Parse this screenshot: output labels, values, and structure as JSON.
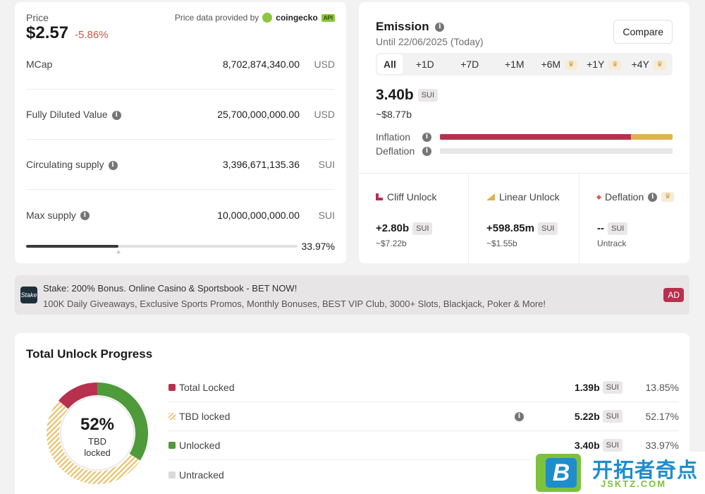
{
  "price": {
    "label": "Price",
    "value": "$2.57",
    "change": "-5.86%",
    "provider_prefix": "Price data provided by",
    "provider_name": "coingecko",
    "provider_tag": "API"
  },
  "stats": [
    {
      "label": "MCap",
      "value": "8,702,874,340.00",
      "unit": "USD",
      "info": false
    },
    {
      "label": "Fully Diluted Value",
      "value": "25,700,000,000.00",
      "unit": "USD",
      "info": true
    },
    {
      "label": "Circulating supply",
      "value": "3,396,671,135.36",
      "unit": "SUI",
      "info": true
    },
    {
      "label": "Max supply",
      "value": "10,000,000,000.00",
      "unit": "SUI",
      "info": true
    }
  ],
  "supply_progress": {
    "percent_label": "33.97%",
    "fraction": 0.3397
  },
  "emission": {
    "title": "Emission",
    "subtitle": "Until 22/06/2025 (Today)",
    "compare_label": "Compare",
    "tabs": [
      {
        "label": "All",
        "premium": false
      },
      {
        "label": "+1D",
        "premium": false
      },
      {
        "label": "+7D",
        "premium": false
      },
      {
        "label": "+1M",
        "premium": false
      },
      {
        "label": "+6M",
        "premium": true
      },
      {
        "label": "+1Y",
        "premium": true
      },
      {
        "label": "+4Y",
        "premium": true
      }
    ],
    "amount": "3.40b",
    "amount_unit": "SUI",
    "amount_usd": "~$8.77b",
    "inflation_label": "Inflation",
    "deflation_label": "Deflation",
    "inflation_fraction": 0.82,
    "inflation_gold_fraction": 0.18,
    "colors": {
      "inflation": "#b7314f",
      "linear": "#dcb350"
    }
  },
  "unlocks": [
    {
      "label": "Cliff Unlock",
      "value": "+2.80b",
      "unit": "SUI",
      "usd": "~$7.22b",
      "icon": "cliff-unlock-icon"
    },
    {
      "label": "Linear Unlock",
      "value": "+598.85m",
      "unit": "SUI",
      "usd": "~$1.55b",
      "icon": "linear-unlock-icon"
    },
    {
      "label": "Deflation",
      "value": "--",
      "unit": "SUI",
      "usd": "Untrack",
      "icon": "deflation-icon"
    }
  ],
  "ad": {
    "logo": "Stake",
    "title": "Stake: 200% Bonus. Online Casino & Sportsbook - BET NOW!",
    "description": "100K Daily Giveaways, Exclusive Sports Promos, Monthly Bonuses, BEST VIP Club, 3000+ Slots, Blackjack, Poker & More!",
    "tag": "AD"
  },
  "progress": {
    "title": "Total Unlock Progress",
    "center_pct": "52%",
    "center_sub1": "TBD",
    "center_sub2": "locked",
    "rows": [
      {
        "name": "Total Locked",
        "amount": "1.39b",
        "unit": "SUI",
        "pct": "13.85%",
        "fraction": 0.1385,
        "color": "#b7314f"
      },
      {
        "name": "TBD locked",
        "amount": "5.22b",
        "unit": "SUI",
        "pct": "52.17%",
        "fraction": 0.5217,
        "color": "#e9c77a"
      },
      {
        "name": "Unlocked",
        "amount": "3.40b",
        "unit": "SUI",
        "pct": "33.97%",
        "fraction": 0.3397,
        "color": "#4f9a3a"
      },
      {
        "name": "Untracked",
        "amount": "",
        "unit": "",
        "pct": "",
        "fraction": 0,
        "color": "#dcd9d9"
      }
    ]
  },
  "watermark": {
    "logo_letter": "B",
    "text": "开拓者奇点",
    "domain": "JSKTZ.COM"
  }
}
